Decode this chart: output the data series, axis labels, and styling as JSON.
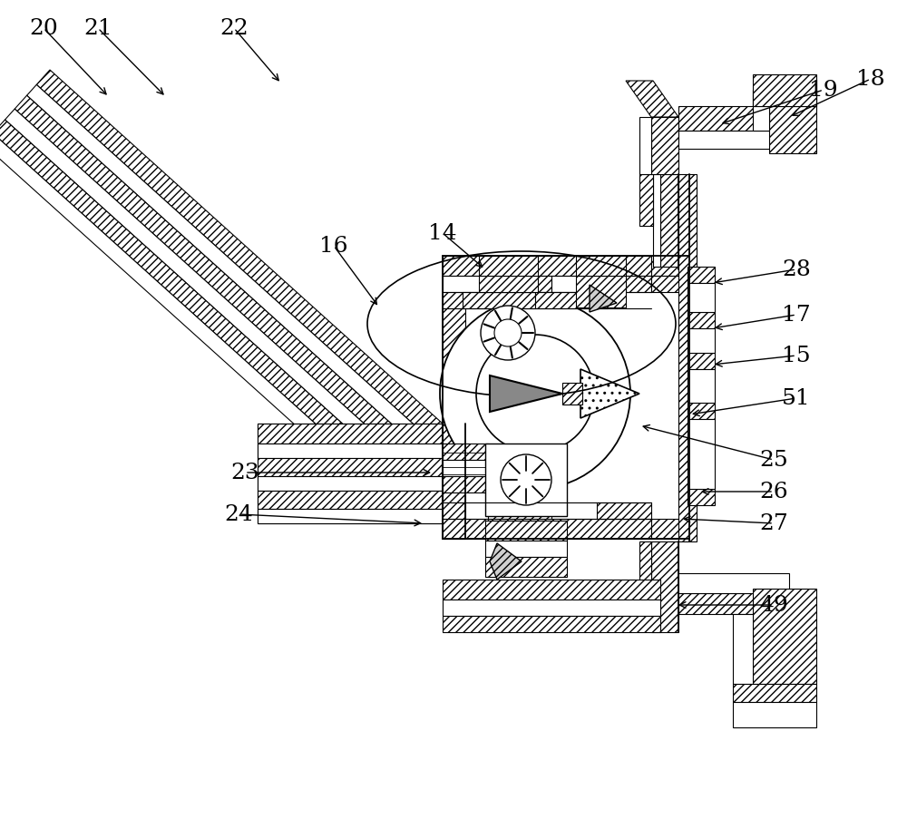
{
  "background_color": "#ffffff",
  "line_color": "#000000",
  "fig_width": 10.0,
  "fig_height": 9.04,
  "dpi": 100,
  "annotation_fontsize": 18,
  "hatch_density": "////",
  "annotations": [
    [
      "20",
      48,
      32,
      120,
      108
    ],
    [
      "21",
      108,
      32,
      183,
      108
    ],
    [
      "22",
      258,
      32,
      310,
      93
    ],
    [
      "16",
      368,
      272,
      418,
      340
    ],
    [
      "14",
      488,
      258,
      535,
      298
    ],
    [
      "19",
      908,
      100,
      793,
      138
    ],
    [
      "18",
      960,
      88,
      870,
      130
    ],
    [
      "28",
      878,
      298,
      785,
      313
    ],
    [
      "17",
      878,
      348,
      785,
      363
    ],
    [
      "15",
      878,
      393,
      785,
      403
    ],
    [
      "51",
      878,
      440,
      760,
      458
    ],
    [
      "23",
      270,
      522,
      478,
      522
    ],
    [
      "24",
      263,
      568,
      468,
      578
    ],
    [
      "25",
      853,
      508,
      705,
      470
    ],
    [
      "26",
      853,
      543,
      770,
      543
    ],
    [
      "27",
      853,
      578,
      750,
      573
    ],
    [
      "49",
      853,
      668,
      745,
      668
    ]
  ]
}
